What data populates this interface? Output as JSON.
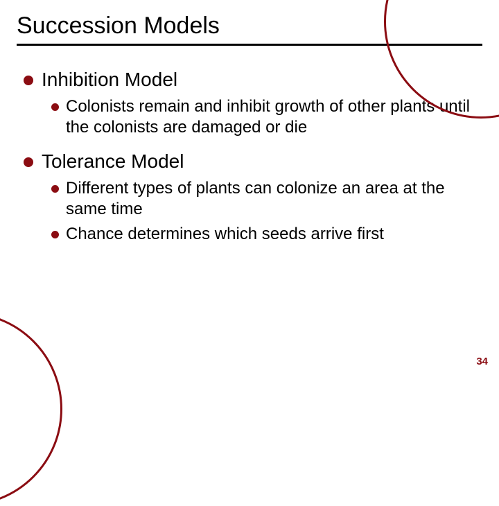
{
  "colors": {
    "accent": "#8b0c12",
    "text": "#000000",
    "background": "#ffffff"
  },
  "slide": {
    "title": "Succession Models",
    "page_number": "34",
    "sections": [
      {
        "heading": "Inhibition Model",
        "points": [
          "Colonists remain and inhibit growth of other plants until the colonists are damaged or die"
        ]
      },
      {
        "heading": "Tolerance Model",
        "points": [
          "Different types of plants can colonize an area at the same time",
          "Chance determines which seeds arrive first"
        ]
      }
    ]
  }
}
